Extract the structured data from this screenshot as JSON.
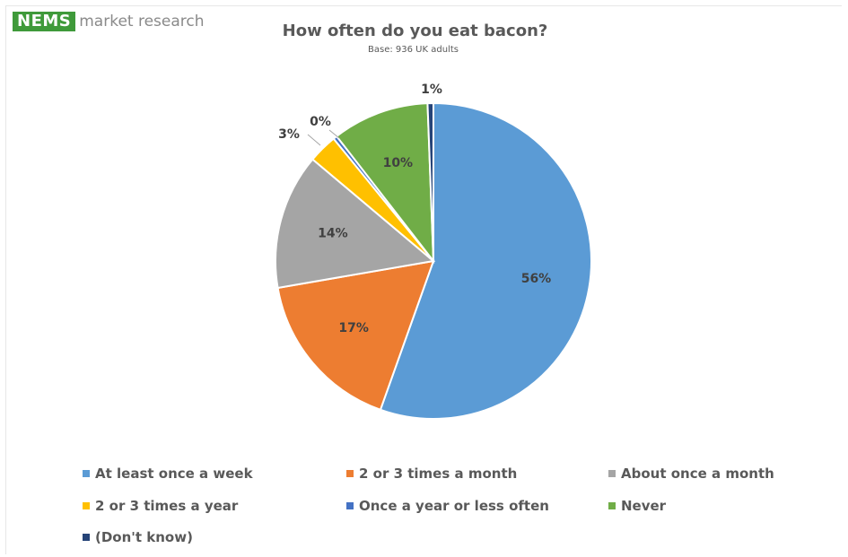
{
  "logo": {
    "brand": "NEMS",
    "tagline": "market research"
  },
  "chart_data": {
    "type": "pie",
    "title": "How often do you eat bacon?",
    "subtitle": "Base: 936 UK adults",
    "slices": [
      {
        "name": "At least once a week",
        "value": 56,
        "label": "56%",
        "color": "#5b9bd5"
      },
      {
        "name": "2 or 3 times a month",
        "value": 17,
        "label": "17%",
        "color": "#ed7d31"
      },
      {
        "name": "About once a month",
        "value": 14,
        "label": "14%",
        "color": "#a5a5a5"
      },
      {
        "name": "2 or 3 times a year",
        "value": 3,
        "label": "3%",
        "color": "#ffc000"
      },
      {
        "name": "Once a year or less often",
        "value": 0.4,
        "label": "0%",
        "color": "#4472c4"
      },
      {
        "name": "Never",
        "value": 10,
        "label": "10%",
        "color": "#70ad47"
      },
      {
        "name": "(Don't know)",
        "value": 0.6,
        "label": "1%",
        "color": "#264478"
      }
    ],
    "legend_position": "bottom"
  }
}
